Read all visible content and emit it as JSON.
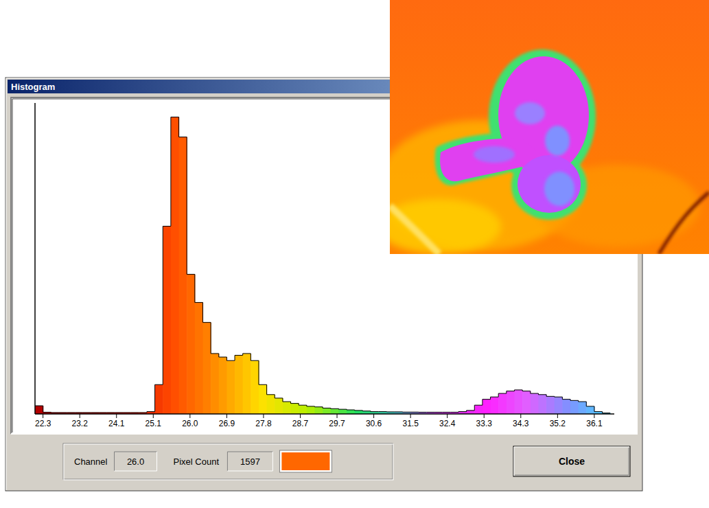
{
  "chart_data": {
    "type": "histogram",
    "title": "Histogram",
    "bins": [
      22.1,
      22.3,
      22.5,
      22.7,
      22.9,
      23.1,
      23.3,
      23.5,
      23.7,
      23.9,
      24.1,
      24.3,
      24.5,
      24.7,
      24.9,
      25.1,
      25.3,
      25.5,
      25.7,
      25.9,
      26.1,
      26.3,
      26.5,
      26.7,
      26.9,
      27.1,
      27.3,
      27.5,
      27.7,
      27.9,
      28.1,
      28.3,
      28.5,
      28.7,
      28.9,
      29.1,
      29.3,
      29.5,
      29.7,
      29.9,
      30.1,
      30.3,
      30.5,
      30.7,
      30.9,
      31.1,
      31.3,
      31.5,
      31.7,
      31.9,
      32.1,
      32.3,
      32.5,
      32.7,
      32.9,
      33.1,
      33.3,
      33.5,
      33.7,
      33.9,
      34.1,
      34.3,
      34.5,
      34.7,
      34.9,
      35.1,
      35.3,
      35.5,
      35.7,
      35.9,
      36.1,
      36.3,
      36.5
    ],
    "values": [
      70,
      15,
      12,
      12,
      12,
      12,
      12,
      12,
      12,
      12,
      12,
      12,
      12,
      12,
      20,
      250,
      1600,
      2530,
      2360,
      1190,
      950,
      780,
      515,
      485,
      455,
      500,
      515,
      455,
      250,
      165,
      135,
      105,
      90,
      75,
      65,
      60,
      50,
      45,
      40,
      35,
      30,
      25,
      20,
      20,
      18,
      18,
      16,
      16,
      15,
      15,
      15,
      15,
      15,
      20,
      30,
      75,
      125,
      145,
      175,
      195,
      205,
      195,
      175,
      165,
      150,
      145,
      125,
      115,
      105,
      65,
      20,
      8
    ],
    "xlim": [
      22.1,
      36.6
    ],
    "ylim": [
      0,
      2650
    ],
    "xticks": [
      {
        "value": 22.3,
        "label": "22.3"
      },
      {
        "value": 23.22,
        "label": "23.2"
      },
      {
        "value": 24.14,
        "label": "24.1"
      },
      {
        "value": 25.06,
        "label": "25.1"
      },
      {
        "value": 25.98,
        "label": "26.0"
      },
      {
        "value": 26.9,
        "label": "26.9"
      },
      {
        "value": 27.82,
        "label": "27.8"
      },
      {
        "value": 28.74,
        "label": "28.7"
      },
      {
        "value": 29.66,
        "label": "29.7"
      },
      {
        "value": 30.58,
        "label": "30.6"
      },
      {
        "value": 31.5,
        "label": "31.5"
      },
      {
        "value": 32.42,
        "label": "32.4"
      },
      {
        "value": 33.34,
        "label": "33.3"
      },
      {
        "value": 34.26,
        "label": "34.3"
      },
      {
        "value": 35.18,
        "label": "35.2"
      },
      {
        "value": 36.1,
        "label": "36.1"
      }
    ],
    "tick_labels": "x"
  },
  "status": {
    "channel_label": "Channel",
    "channel": "26.0",
    "count_label": "Pixel Count",
    "count": 1597
  },
  "button": "Close"
}
